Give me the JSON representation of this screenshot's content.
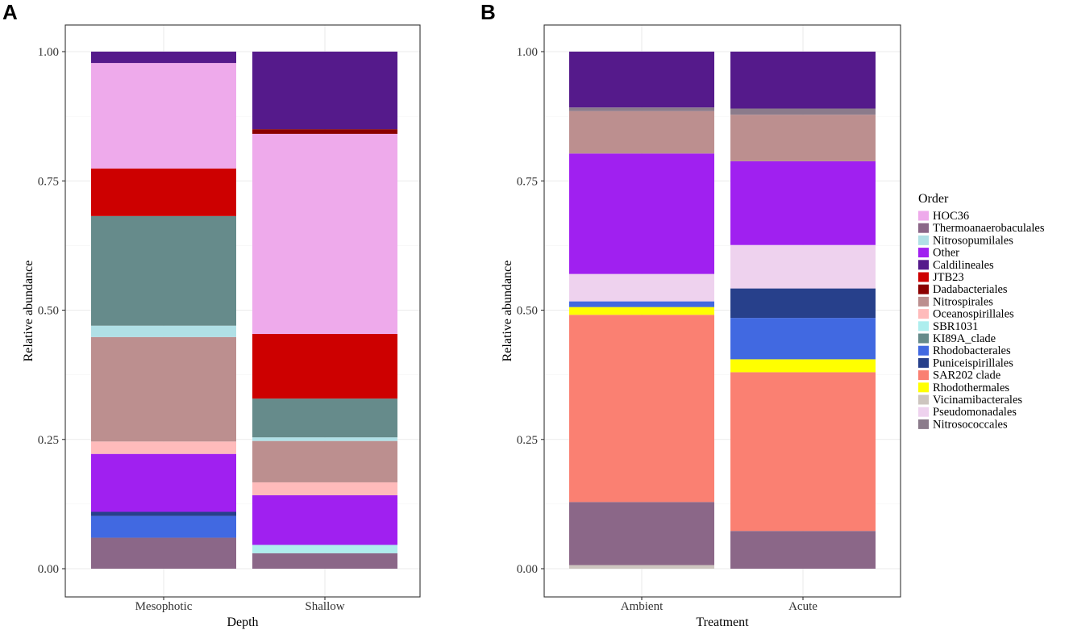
{
  "chart_data": [
    {
      "panel": "A",
      "type": "bar",
      "stacked": true,
      "xlabel": "Depth",
      "ylabel": "Relative abundance",
      "ylim": [
        0,
        1
      ],
      "yticks": [
        "0.00",
        "0.25",
        "0.50",
        "0.75",
        "1.00"
      ],
      "categories": [
        "Mesophotic",
        "Shallow"
      ],
      "bars": [
        {
          "category": "Mesophotic",
          "segments": [
            {
              "order": "Thermoanaerobaculales",
              "value": 0.06
            },
            {
              "order": "Rhodobacterales",
              "value": 0.042
            },
            {
              "order": "Puniceispirillales",
              "value": 0.008
            },
            {
              "order": "Other",
              "value": 0.112
            },
            {
              "order": "Oceanospirillales",
              "value": 0.024
            },
            {
              "order": "Nitrospirales",
              "value": 0.202
            },
            {
              "order": "Nitrosopumilales",
              "value": 0.022
            },
            {
              "order": "KI89A_clade",
              "value": 0.212
            },
            {
              "order": "JTB23",
              "value": 0.092
            },
            {
              "order": "HOC36",
              "value": 0.204
            },
            {
              "order": "Caldilineales",
              "value": 0.022
            }
          ]
        },
        {
          "category": "Shallow",
          "segments": [
            {
              "order": "Thermoanaerobaculales",
              "value": 0.03
            },
            {
              "order": "SBR1031",
              "value": 0.016
            },
            {
              "order": "Other",
              "value": 0.096
            },
            {
              "order": "Oceanospirillales",
              "value": 0.025
            },
            {
              "order": "Nitrospirales",
              "value": 0.08
            },
            {
              "order": "Nitrosopumilales",
              "value": 0.007
            },
            {
              "order": "KI89A_clade",
              "value": 0.075
            },
            {
              "order": "JTB23",
              "value": 0.125
            },
            {
              "order": "HOC36",
              "value": 0.387
            },
            {
              "order": "Dadabacteriales",
              "value": 0.009
            },
            {
              "order": "Caldilineales",
              "value": 0.15
            }
          ]
        }
      ]
    },
    {
      "panel": "B",
      "type": "bar",
      "stacked": true,
      "xlabel": "Treatment",
      "ylabel": "Relative abundance",
      "ylim": [
        0,
        1
      ],
      "yticks": [
        "0.00",
        "0.25",
        "0.50",
        "0.75",
        "1.00"
      ],
      "categories": [
        "Ambient",
        "Acute"
      ],
      "bars": [
        {
          "category": "Ambient",
          "segments": [
            {
              "order": "Vicinamibacterales",
              "value": 0.007
            },
            {
              "order": "Thermoanaerobaculales",
              "value": 0.122
            },
            {
              "order": "SAR202 clade",
              "value": 0.362
            },
            {
              "order": "Rhodothermales",
              "value": 0.015
            },
            {
              "order": "Rhodobacterales",
              "value": 0.011
            },
            {
              "order": "Pseudomonadales",
              "value": 0.053
            },
            {
              "order": "Other",
              "value": 0.233
            },
            {
              "order": "Nitrospirales",
              "value": 0.082
            },
            {
              "order": "Nitrosococcales",
              "value": 0.007
            },
            {
              "order": "Caldilineales",
              "value": 0.108
            }
          ]
        },
        {
          "category": "Acute",
          "segments": [
            {
              "order": "Thermoanaerobaculales",
              "value": 0.073
            },
            {
              "order": "SAR202 clade",
              "value": 0.307
            },
            {
              "order": "Rhodothermales",
              "value": 0.025
            },
            {
              "order": "Rhodobacterales",
              "value": 0.08
            },
            {
              "order": "Puniceispirillales",
              "value": 0.057
            },
            {
              "order": "Pseudomonadales",
              "value": 0.084
            },
            {
              "order": "Other",
              "value": 0.162
            },
            {
              "order": "Nitrospirales",
              "value": 0.09
            },
            {
              "order": "Nitrosococcales",
              "value": 0.012
            },
            {
              "order": "Caldilineales",
              "value": 0.11
            }
          ]
        }
      ]
    }
  ],
  "legend": {
    "title": "Order",
    "position": "right",
    "items": [
      {
        "label": "HOC36",
        "color": "#EEAAEB"
      },
      {
        "label": "Thermoanaerobaculales",
        "color": "#8B6788"
      },
      {
        "label": "Nitrosopumilales",
        "color": "#B0E0E6"
      },
      {
        "label": "Other",
        "color": "#A020F0"
      },
      {
        "label": "Caldilineales",
        "color": "#551A8B"
      },
      {
        "label": "JTB23",
        "color": "#CD0000"
      },
      {
        "label": "Dadabacteriales",
        "color": "#8B0000"
      },
      {
        "label": "Nitrospirales",
        "color": "#BC8F8F"
      },
      {
        "label": "Oceanospirillales",
        "color": "#FFBBBB"
      },
      {
        "label": "SBR1031",
        "color": "#AEEEEE"
      },
      {
        "label": "KI89A_clade",
        "color": "#668B8B"
      },
      {
        "label": "Rhodobacterales",
        "color": "#4169E1"
      },
      {
        "label": "Puniceispirillales",
        "color": "#27408B"
      },
      {
        "label": "SAR202 clade",
        "color": "#FA8072"
      },
      {
        "label": "Rhodothermales",
        "color": "#FFFF00"
      },
      {
        "label": "Vicinamibacterales",
        "color": "#CDC5BF"
      },
      {
        "label": "Pseudomonadales",
        "color": "#EED2EE"
      },
      {
        "label": "Nitrosococcales",
        "color": "#8B7B8B"
      }
    ]
  }
}
